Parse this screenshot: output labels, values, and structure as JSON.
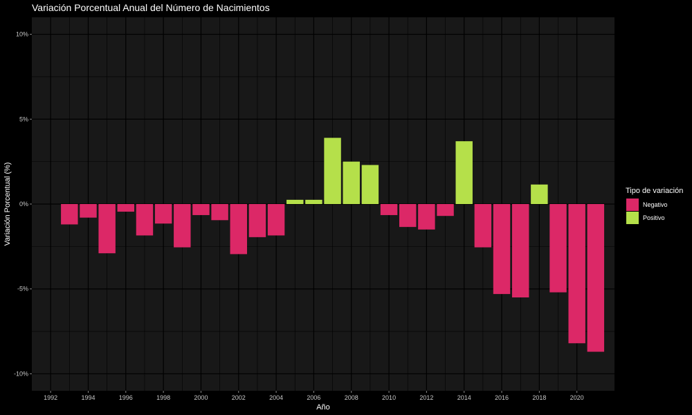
{
  "chart_data": {
    "type": "bar",
    "title": "Variación Porcentual Anual del Número de Nacimientos",
    "xlabel": "Año",
    "ylabel": "Variación Porcentual (%)",
    "x": [
      1993,
      1994,
      1995,
      1996,
      1997,
      1998,
      1999,
      2000,
      2001,
      2002,
      2003,
      2004,
      2005,
      2006,
      2007,
      2008,
      2009,
      2010,
      2011,
      2012,
      2013,
      2014,
      2015,
      2016,
      2017,
      2018,
      2019,
      2020,
      2021
    ],
    "values": [
      -1.2,
      -0.8,
      -2.9,
      -0.45,
      -1.85,
      -1.15,
      -2.55,
      -0.65,
      -0.95,
      -2.95,
      -1.95,
      -1.85,
      0.25,
      0.25,
      3.9,
      2.5,
      2.3,
      -0.65,
      -1.35,
      -1.5,
      -0.7,
      3.7,
      -2.55,
      -5.3,
      -5.5,
      1.15,
      -5.2,
      -8.2,
      -8.7
    ],
    "xlim": [
      1991,
      2022
    ],
    "ylim": [
      -11,
      11
    ],
    "x_ticks": [
      1992,
      1994,
      1996,
      1998,
      2000,
      2002,
      2004,
      2006,
      2008,
      2010,
      2012,
      2014,
      2016,
      2018,
      2020
    ],
    "x_tick_labels": [
      "1992",
      "1994",
      "1996",
      "1998",
      "2000",
      "2002",
      "2004",
      "2006",
      "2008",
      "2010",
      "2012",
      "2014",
      "2016",
      "2018",
      "2020"
    ],
    "y_ticks": [
      -10,
      -5,
      0,
      5,
      10
    ],
    "y_tick_labels": [
      "-10%",
      "-5%",
      "0%",
      "5%",
      "10%"
    ],
    "grid": true,
    "legend": {
      "title": "Tipo de variación",
      "placement": "right",
      "items": [
        {
          "label": "Negativo",
          "color": "#dc2867"
        },
        {
          "label": "Positivo",
          "color": "#b5e04a"
        }
      ]
    },
    "colors": {
      "negative": "#dc2867",
      "positive": "#b5e04a",
      "panel": "#181818",
      "background": "#000000",
      "grid": "#000000"
    }
  }
}
